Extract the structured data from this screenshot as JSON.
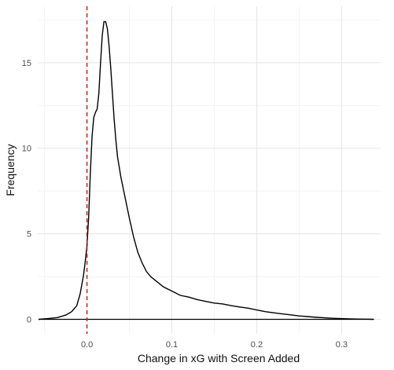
{
  "chart_data": {
    "type": "line",
    "subtype": "density",
    "title": "",
    "xlabel": "Change in xG with Screen Added",
    "ylabel": "Frequency",
    "xlim": [
      -0.058,
      0.346
    ],
    "ylim": [
      -0.85,
      18.3
    ],
    "x_ticks": [
      0.0,
      0.1,
      0.2,
      0.3
    ],
    "x_tick_labels": [
      "0.0",
      "0.1",
      "0.2",
      "0.3"
    ],
    "y_ticks": [
      0,
      5,
      10,
      15
    ],
    "y_tick_labels": [
      "0",
      "5",
      "10",
      "15"
    ],
    "x_minor_ticks": [
      -0.05,
      0.05,
      0.15,
      0.25
    ],
    "y_minor_ticks": [
      2.5,
      7.5,
      12.5,
      17.5
    ],
    "grid": true,
    "theme": "minimal",
    "reference_line": {
      "orientation": "vertical",
      "x": 0.0,
      "color": "#d7191c",
      "style": "dashed"
    },
    "series": [
      {
        "color": "#000000",
        "x": [
          -0.057,
          -0.045,
          -0.035,
          -0.025,
          -0.018,
          -0.012,
          -0.008,
          -0.004,
          -0.002,
          0.0,
          0.002,
          0.004,
          0.006,
          0.008,
          0.01,
          0.012,
          0.014,
          0.016,
          0.018,
          0.02,
          0.022,
          0.024,
          0.026,
          0.028,
          0.03,
          0.032,
          0.034,
          0.036,
          0.04,
          0.045,
          0.05,
          0.055,
          0.06,
          0.065,
          0.07,
          0.075,
          0.08,
          0.09,
          0.1,
          0.11,
          0.12,
          0.13,
          0.14,
          0.15,
          0.16,
          0.17,
          0.18,
          0.19,
          0.2,
          0.21,
          0.22,
          0.23,
          0.24,
          0.25,
          0.26,
          0.27,
          0.28,
          0.29,
          0.3,
          0.31,
          0.32,
          0.33,
          0.338
        ],
        "y": [
          0.0,
          0.05,
          0.1,
          0.25,
          0.45,
          0.8,
          1.5,
          2.6,
          3.4,
          4.3,
          6.0,
          8.6,
          10.7,
          11.8,
          12.1,
          12.3,
          13.2,
          15.0,
          16.6,
          17.4,
          17.4,
          17.0,
          16.0,
          14.7,
          13.2,
          11.7,
          10.5,
          9.5,
          8.3,
          7.1,
          5.9,
          4.8,
          3.9,
          3.3,
          2.8,
          2.5,
          2.3,
          1.9,
          1.65,
          1.4,
          1.3,
          1.15,
          1.05,
          0.95,
          0.9,
          0.8,
          0.72,
          0.65,
          0.55,
          0.45,
          0.38,
          0.32,
          0.26,
          0.2,
          0.16,
          0.12,
          0.09,
          0.06,
          0.04,
          0.025,
          0.015,
          0.01,
          0.0
        ]
      }
    ]
  }
}
